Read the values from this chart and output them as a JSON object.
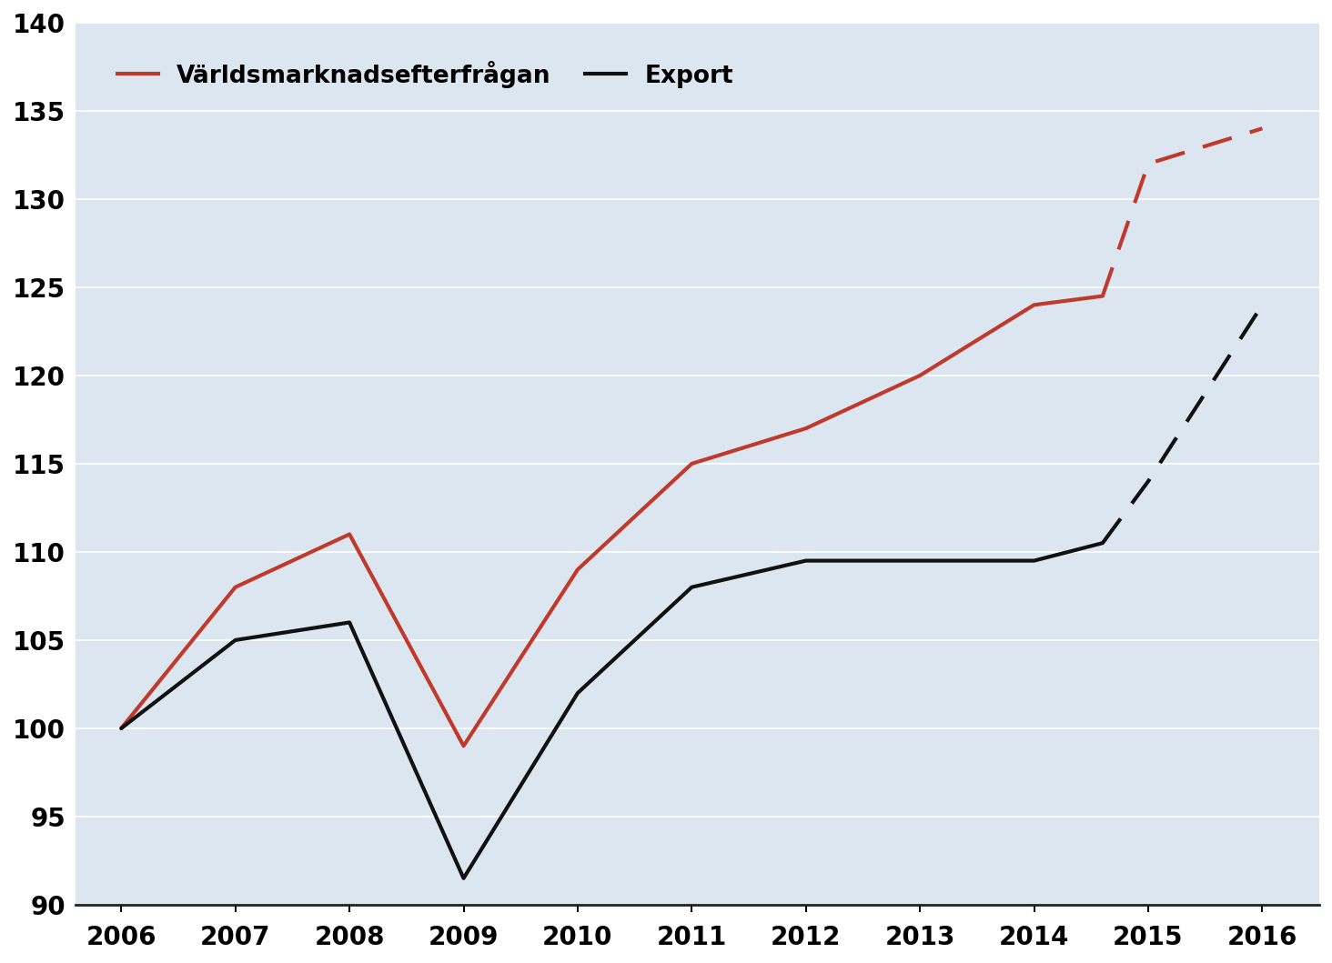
{
  "years_solid_world": [
    2006,
    2007,
    2008,
    2009,
    2010,
    2011,
    2012,
    2013,
    2014,
    2014.6
  ],
  "years_solid_export": [
    2006,
    2007,
    2008,
    2009,
    2010,
    2011,
    2012,
    2013,
    2014,
    2014.6
  ],
  "world_demand_solid": [
    100,
    108,
    111,
    99,
    109,
    115,
    117,
    120,
    124,
    124.5
  ],
  "export_solid": [
    100,
    105,
    106,
    91.5,
    102,
    108,
    109.5,
    109.5,
    109.5,
    110.5
  ],
  "years_dashed": [
    2014.6,
    2015,
    2016
  ],
  "world_demand_dashed": [
    124.5,
    132,
    134
  ],
  "export_dashed": [
    110.5,
    114,
    124
  ],
  "world_color": "#c0392b",
  "export_color": "#111111",
  "background_color": "#dce6f1",
  "plot_bg_color": "#dce6f1",
  "legend_world": "Världsmarknadsefterfrågan",
  "legend_export": "Export",
  "ylim": [
    90,
    140
  ],
  "yticks": [
    90,
    95,
    100,
    105,
    110,
    115,
    120,
    125,
    130,
    135,
    140
  ],
  "xlim": [
    2005.6,
    2016.5
  ],
  "xticks": [
    2006,
    2007,
    2008,
    2009,
    2010,
    2011,
    2012,
    2013,
    2014,
    2015,
    2016
  ],
  "linewidth": 3.0,
  "grid_color": "#ffffff",
  "grid_linewidth": 1.2
}
